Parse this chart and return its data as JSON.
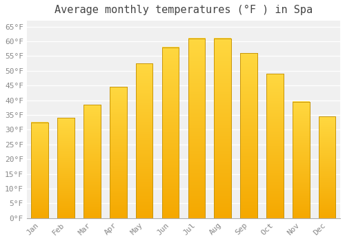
{
  "title": "Average monthly temperatures (°F ) in Spa",
  "months": [
    "Jan",
    "Feb",
    "Mar",
    "Apr",
    "May",
    "Jun",
    "Jul",
    "Aug",
    "Sep",
    "Oct",
    "Nov",
    "Dec"
  ],
  "values": [
    32.5,
    34.0,
    38.5,
    44.5,
    52.5,
    58.0,
    61.0,
    61.0,
    56.0,
    49.0,
    39.5,
    34.5
  ],
  "bar_color_bottom": "#F5A800",
  "bar_color_top": "#FFD840",
  "bar_edge_color": "#C8960A",
  "background_color": "#FFFFFF",
  "plot_bg_color": "#F0F0F0",
  "grid_color": "#FFFFFF",
  "ylim": [
    0,
    67
  ],
  "yticks": [
    0,
    5,
    10,
    15,
    20,
    25,
    30,
    35,
    40,
    45,
    50,
    55,
    60,
    65
  ],
  "ytick_labels": [
    "0°F",
    "5°F",
    "10°F",
    "15°F",
    "20°F",
    "25°F",
    "30°F",
    "35°F",
    "40°F",
    "45°F",
    "50°F",
    "55°F",
    "60°F",
    "65°F"
  ],
  "title_fontsize": 11,
  "tick_fontsize": 8,
  "font_family": "monospace"
}
